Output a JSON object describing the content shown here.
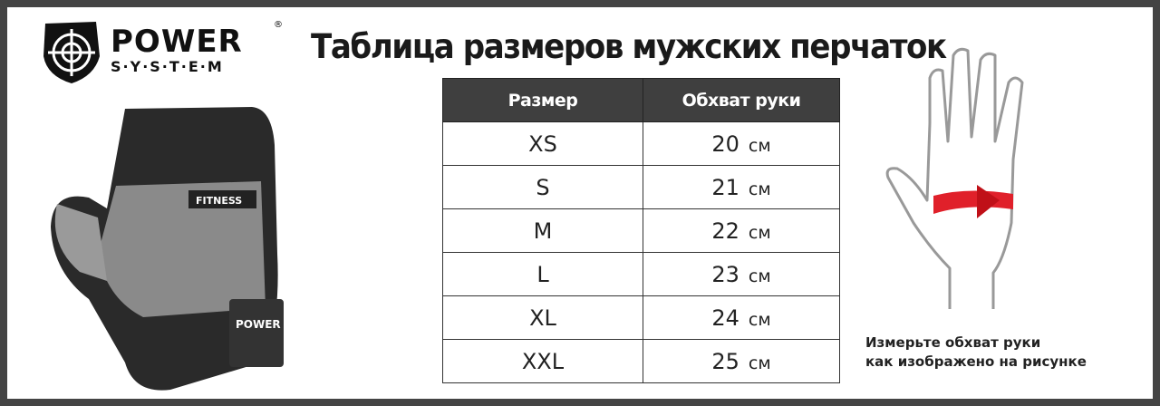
{
  "brand": {
    "name_line1": "POWER",
    "name_line2": "S·Y·S·T·E·M",
    "registered": "®"
  },
  "title": "Таблица размеров мужских перчаток",
  "table": {
    "headers": [
      "Размер",
      "Обхват руки"
    ],
    "unit": "см",
    "rows": [
      {
        "size": "XS",
        "value": "20"
      },
      {
        "size": "S",
        "value": "21"
      },
      {
        "size": "M",
        "value": "22"
      },
      {
        "size": "L",
        "value": "23"
      },
      {
        "size": "XL",
        "value": "24"
      },
      {
        "size": "XXL",
        "value": "25"
      }
    ]
  },
  "glove_image": {
    "label": "FITNESS",
    "strap_brand": "POWER"
  },
  "caption": {
    "line1": "Измерьте обхват руки",
    "line2": "как изображено на рисунке"
  },
  "colors": {
    "frame": "#444444",
    "header_bg": "#3f3f3f",
    "arrow": "#e0202a"
  }
}
